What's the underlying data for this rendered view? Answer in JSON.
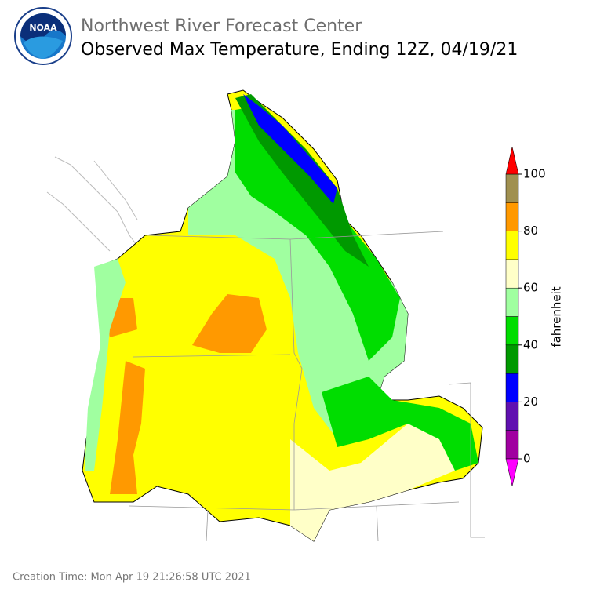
{
  "header": {
    "org": "Northwest River Forecast Center",
    "title": "Observed Max Temperature, Ending 12Z, 04/19/21"
  },
  "logo": {
    "text": "NOAA"
  },
  "colorbar": {
    "label": "fahrenheit",
    "range": [
      0,
      100
    ],
    "ticks": [
      0,
      20,
      40,
      60,
      80,
      100
    ],
    "bins": [
      0,
      10,
      20,
      30,
      40,
      50,
      60,
      70,
      80,
      90,
      100
    ],
    "colors": [
      "#a000a0",
      "#6010b0",
      "#0000ff",
      "#009900",
      "#00dd00",
      "#a0ffa0",
      "#ffffc8",
      "#ffff00",
      "#ff9900",
      "#a09050"
    ],
    "under_color": "#ff00ff",
    "over_color": "#ff0000"
  },
  "footer": "Creation Time: Mon Apr 19 21:26:58 UTC 2021"
}
